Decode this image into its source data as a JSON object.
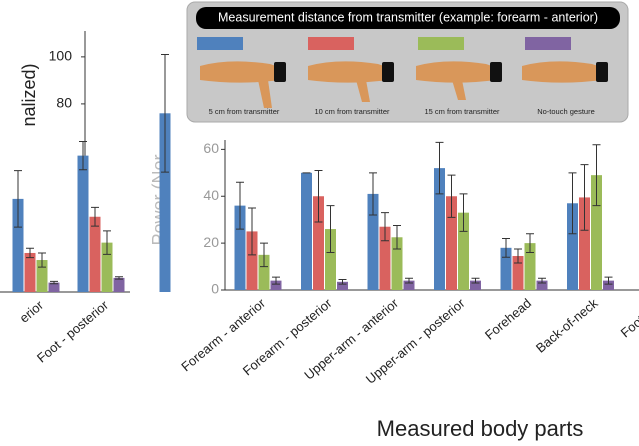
{
  "chart_data": [
    {
      "type": "bar",
      "legend_title": "Measurement distance from transmitter (example: forearm - anterior)",
      "x_label": "Measured body parts",
      "y_label": "Power (Nor",
      "categories": [
        "Forearm - anterior",
        "Forearm - posterior",
        "Upper-arm - anterior",
        "Upper-arm - posterior",
        "Forehead",
        "Back-of-neck",
        "Foot - an"
      ],
      "ylim": [
        0,
        64
      ],
      "yticks": [
        0,
        20,
        40,
        60
      ],
      "series": [
        {
          "name": "5 cm from transmitter",
          "color": "#4f81bd",
          "values": [
            36,
            50,
            41,
            52,
            18,
            37,
            null
          ],
          "errors": [
            10,
            0,
            9,
            11,
            4,
            13,
            null
          ]
        },
        {
          "name": "10 cm from transmitter",
          "color": "#d9625f",
          "values": [
            25,
            40,
            27,
            40,
            14.5,
            39.5,
            null
          ],
          "errors": [
            10,
            11,
            6,
            9,
            3,
            14,
            null
          ]
        },
        {
          "name": "15 cm from transmitter",
          "color": "#9bbb59",
          "values": [
            15,
            26,
            22.5,
            33,
            20,
            49,
            null
          ],
          "errors": [
            5,
            10,
            5,
            8,
            4,
            13,
            null
          ]
        },
        {
          "name": "No-touch gesture",
          "color": "#8064a2",
          "values": [
            4,
            3.5,
            4,
            4,
            4,
            4,
            null
          ],
          "errors": [
            1.5,
            1,
            1,
            1,
            1,
            1.5,
            null
          ]
        }
      ]
    },
    {
      "type": "bar",
      "y_label": "nalized)",
      "categories": [
        "erior",
        "Foot - posterior",
        null
      ],
      "ylim": [
        0,
        111
      ],
      "yticks": [
        80,
        100
      ],
      "series": [
        {
          "name": "5 cm from transmitter",
          "color": "#4f81bd",
          "values": [
            39.6,
            58,
            76
          ],
          "errors": [
            12,
            6,
            25
          ]
        },
        {
          "name": "10 cm from transmitter",
          "color": "#d9625f",
          "values": [
            16.6,
            32,
            null
          ],
          "errors": [
            2,
            4,
            null
          ]
        },
        {
          "name": "15 cm from transmitter",
          "color": "#9bbb59",
          "values": [
            13.6,
            21,
            null
          ],
          "errors": [
            3,
            5,
            null
          ]
        },
        {
          "name": "No-touch gesture",
          "color": "#8064a2",
          "values": [
            4,
            6,
            null
          ],
          "errors": [
            0.5,
            0.5,
            null
          ]
        }
      ]
    }
  ]
}
